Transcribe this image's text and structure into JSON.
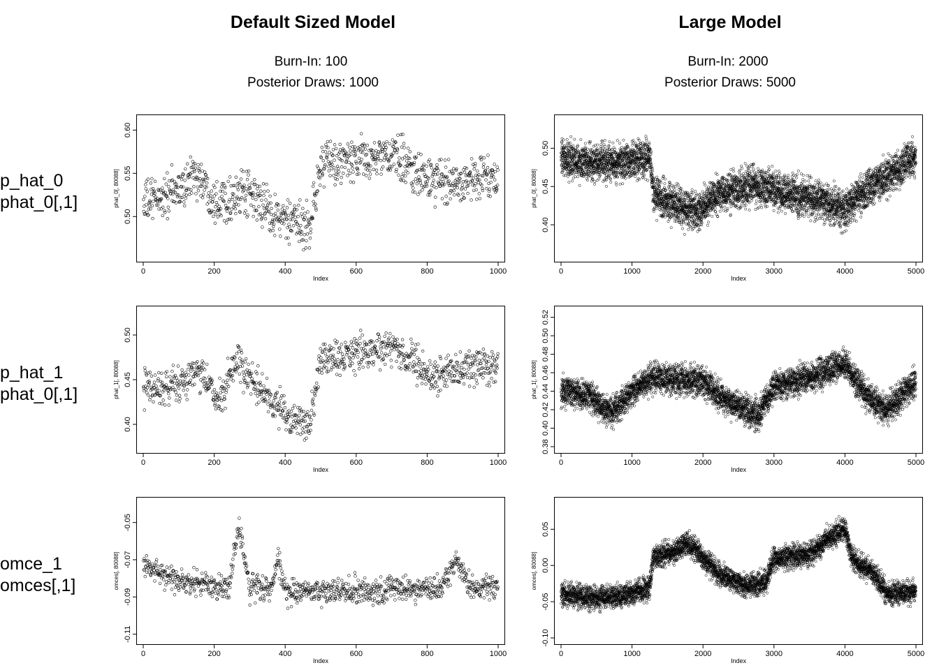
{
  "columns": [
    {
      "title": "Default Sized Model",
      "burn_in": "Burn-In: 100",
      "posterior_draws": "Posterior Draws: 1000"
    },
    {
      "title": "Large Model",
      "burn_in": "Burn-In: 2000",
      "posterior_draws": "Posterior Draws: 5000"
    }
  ],
  "rows": [
    {
      "name": "p_hat_0",
      "expr": "phat_0[,1]"
    },
    {
      "name": "p_hat_1",
      "expr": "phat_0[,1]"
    },
    {
      "name": "omce_1",
      "expr": "omces[,1]"
    }
  ],
  "chart_data": [
    {
      "type": "scatter",
      "panel": "row1-default",
      "xlabel": "Index",
      "ylabel": "phat_0[, 80088]",
      "xlim": [
        0,
        1000
      ],
      "ylim": [
        0.455,
        0.61
      ],
      "xticks": [
        "0",
        "200",
        "400",
        "600",
        "800",
        "1000"
      ],
      "yticks": [
        "0.50",
        "0.55",
        "0.60"
      ],
      "n": 1000,
      "noise": 0.018,
      "trend": [
        [
          0,
          0.515
        ],
        [
          100,
          0.53
        ],
        [
          150,
          0.55
        ],
        [
          200,
          0.52
        ],
        [
          300,
          0.525
        ],
        [
          380,
          0.5
        ],
        [
          420,
          0.49
        ],
        [
          470,
          0.49
        ],
        [
          500,
          0.56
        ],
        [
          600,
          0.565
        ],
        [
          700,
          0.57
        ],
        [
          750,
          0.56
        ],
        [
          800,
          0.54
        ],
        [
          1000,
          0.545
        ]
      ]
    },
    {
      "type": "scatter",
      "panel": "row1-large",
      "xlabel": "Index",
      "ylabel": "phat_0[, 80088]",
      "xlim": [
        0,
        5000
      ],
      "ylim": [
        0.36,
        0.535
      ],
      "xticks": [
        "0",
        "1000",
        "2000",
        "3000",
        "4000",
        "5000"
      ],
      "yticks": [
        "0.40",
        "0.45",
        "0.50"
      ],
      "n": 5000,
      "noise": 0.017,
      "trend": [
        [
          0,
          0.485
        ],
        [
          500,
          0.48
        ],
        [
          1000,
          0.485
        ],
        [
          1250,
          0.49
        ],
        [
          1300,
          0.44
        ],
        [
          1500,
          0.43
        ],
        [
          1900,
          0.415
        ],
        [
          2200,
          0.44
        ],
        [
          2700,
          0.45
        ],
        [
          3000,
          0.445
        ],
        [
          3500,
          0.435
        ],
        [
          4000,
          0.42
        ],
        [
          4300,
          0.445
        ],
        [
          5000,
          0.49
        ]
      ]
    },
    {
      "type": "scatter",
      "panel": "row2-default",
      "xlabel": "Index",
      "ylabel": "phat_1[, 80088]",
      "xlim": [
        0,
        1000
      ],
      "ylim": [
        0.375,
        0.525
      ],
      "xticks": [
        "0",
        "200",
        "400",
        "600",
        "800",
        "1000"
      ],
      "yticks": [
        "0.40",
        "0.45",
        "0.50"
      ],
      "n": 1000,
      "noise": 0.014,
      "trend": [
        [
          0,
          0.44
        ],
        [
          100,
          0.445
        ],
        [
          150,
          0.46
        ],
        [
          220,
          0.425
        ],
        [
          260,
          0.47
        ],
        [
          350,
          0.43
        ],
        [
          420,
          0.405
        ],
        [
          470,
          0.4
        ],
        [
          500,
          0.47
        ],
        [
          600,
          0.48
        ],
        [
          700,
          0.485
        ],
        [
          750,
          0.475
        ],
        [
          800,
          0.455
        ],
        [
          1000,
          0.465
        ]
      ]
    },
    {
      "type": "scatter",
      "panel": "row2-large",
      "xlabel": "Index",
      "ylabel": "phat_1[, 80088]",
      "xlim": [
        0,
        5000
      ],
      "ylim": [
        0.38,
        0.525
      ],
      "xticks": [
        "0",
        "1000",
        "2000",
        "3000",
        "4000",
        "5000"
      ],
      "yticks": [
        "0.38",
        "0.40",
        "0.42",
        "0.44",
        "0.46",
        "0.48",
        "0.50",
        "0.52"
      ],
      "n": 5000,
      "noise": 0.011,
      "trend": [
        [
          0,
          0.44
        ],
        [
          400,
          0.435
        ],
        [
          700,
          0.415
        ],
        [
          1000,
          0.44
        ],
        [
          1300,
          0.455
        ],
        [
          2000,
          0.45
        ],
        [
          2400,
          0.425
        ],
        [
          2800,
          0.415
        ],
        [
          3000,
          0.445
        ],
        [
          3500,
          0.455
        ],
        [
          4000,
          0.47
        ],
        [
          4300,
          0.435
        ],
        [
          4600,
          0.42
        ],
        [
          5000,
          0.45
        ]
      ]
    },
    {
      "type": "scatter",
      "panel": "row3-default",
      "xlabel": "Index",
      "ylabel": "omces[, 80088]",
      "xlim": [
        0,
        1000
      ],
      "ylim": [
        -0.112,
        -0.04
      ],
      "xticks": [
        "0",
        "200",
        "400",
        "600",
        "800",
        "1000"
      ],
      "yticks": [
        "-0.11",
        "-0.09",
        "-0.07",
        "-0.05"
      ],
      "n": 1000,
      "noise": 0.005,
      "trend": [
        [
          0,
          -0.072
        ],
        [
          100,
          -0.082
        ],
        [
          240,
          -0.085
        ],
        [
          270,
          -0.052
        ],
        [
          300,
          -0.085
        ],
        [
          360,
          -0.085
        ],
        [
          380,
          -0.07
        ],
        [
          400,
          -0.088
        ],
        [
          840,
          -0.085
        ],
        [
          880,
          -0.07
        ],
        [
          920,
          -0.085
        ],
        [
          1000,
          -0.085
        ]
      ]
    },
    {
      "type": "scatter",
      "panel": "row3-large",
      "xlabel": "Index",
      "ylabel": "omces[, 80088]",
      "xlim": [
        0,
        5000
      ],
      "ylim": [
        -0.1,
        0.085
      ],
      "xticks": [
        "0",
        "1000",
        "2000",
        "3000",
        "4000",
        "5000"
      ],
      "yticks": [
        "-0.10",
        "-0.05",
        "0.00",
        "0.05"
      ],
      "n": 5000,
      "noise": 0.011,
      "trend": [
        [
          0,
          -0.04
        ],
        [
          500,
          -0.045
        ],
        [
          1000,
          -0.04
        ],
        [
          1250,
          -0.03
        ],
        [
          1300,
          0.01
        ],
        [
          1600,
          0.02
        ],
        [
          1800,
          0.03
        ],
        [
          2000,
          0.01
        ],
        [
          2200,
          -0.01
        ],
        [
          2600,
          -0.03
        ],
        [
          2900,
          -0.02
        ],
        [
          3000,
          0.01
        ],
        [
          3500,
          0.015
        ],
        [
          3800,
          0.04
        ],
        [
          4000,
          0.05
        ],
        [
          4100,
          0.01
        ],
        [
          4400,
          -0.01
        ],
        [
          4600,
          -0.04
        ],
        [
          5000,
          -0.035
        ]
      ]
    }
  ]
}
